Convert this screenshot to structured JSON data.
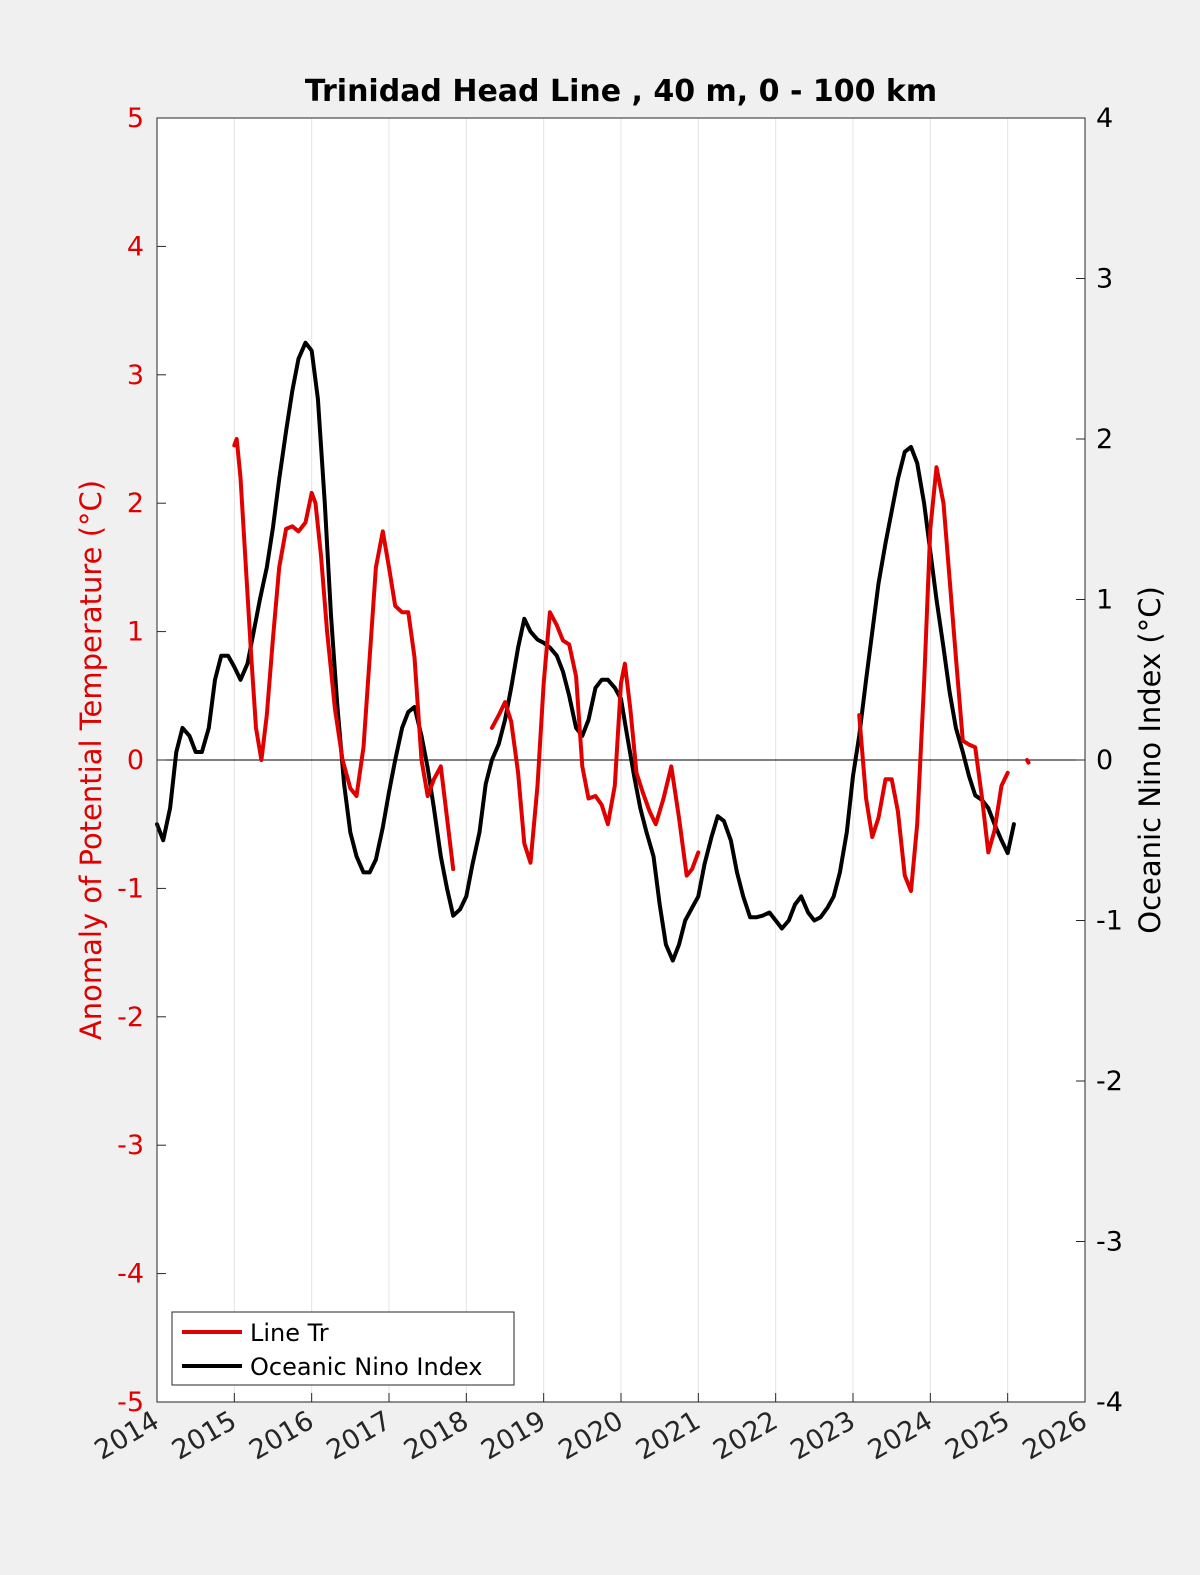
{
  "chart_data": {
    "type": "line",
    "title": "Trinidad Head Line , 40 m, 0 - 100 km",
    "xlabel": "",
    "ylabel_left": "Anomaly of Potential Temperature (°C)",
    "ylabel_right": "Oceanic Nino Index (°C)",
    "xlim": [
      2014,
      2026
    ],
    "ylim_left": [
      -5,
      5
    ],
    "ylim_right": [
      -4,
      4
    ],
    "x_ticks": [
      "2014",
      "2015",
      "2016",
      "2017",
      "2018",
      "2019",
      "2020",
      "2021",
      "2022",
      "2023",
      "2024",
      "2025",
      "2026"
    ],
    "y_left_ticks": [
      "5",
      "4",
      "3",
      "2",
      "1",
      "0",
      "-1",
      "-2",
      "-3",
      "-4",
      "-5"
    ],
    "y_right_ticks": [
      "4",
      "3",
      "2",
      "1",
      "0",
      "-1",
      "-2",
      "-3",
      "-4"
    ],
    "grid": "vertical",
    "legend_position": "bottom-left",
    "colors": {
      "line_tr": "#e00000",
      "oni": "#000000",
      "left_axis": "#e00000",
      "right_axis": "#000000"
    },
    "series": [
      {
        "name": "Line Tr",
        "axis": "left",
        "segments": [
          [
            [
              2015.0,
              2.45
            ],
            [
              2015.03,
              2.5
            ],
            [
              2015.08,
              2.2
            ],
            [
              2015.15,
              1.5
            ],
            [
              2015.22,
              0.8
            ],
            [
              2015.28,
              0.25
            ],
            [
              2015.35,
              0.0
            ],
            [
              2015.42,
              0.35
            ],
            [
              2015.5,
              0.95
            ],
            [
              2015.58,
              1.5
            ],
            [
              2015.67,
              1.8
            ],
            [
              2015.75,
              1.82
            ],
            [
              2015.83,
              1.78
            ],
            [
              2015.92,
              1.85
            ],
            [
              2016.0,
              2.08
            ],
            [
              2016.05,
              2.0
            ],
            [
              2016.12,
              1.6
            ],
            [
              2016.2,
              1.0
            ],
            [
              2016.3,
              0.4
            ],
            [
              2016.4,
              0.0
            ],
            [
              2016.5,
              -0.22
            ],
            [
              2016.58,
              -0.28
            ],
            [
              2016.67,
              0.1
            ],
            [
              2016.75,
              0.8
            ],
            [
              2016.83,
              1.5
            ],
            [
              2016.92,
              1.78
            ],
            [
              2017.0,
              1.5
            ],
            [
              2017.08,
              1.2
            ],
            [
              2017.17,
              1.15
            ],
            [
              2017.25,
              1.15
            ],
            [
              2017.33,
              0.8
            ],
            [
              2017.42,
              0.0
            ],
            [
              2017.5,
              -0.28
            ],
            [
              2017.58,
              -0.15
            ],
            [
              2017.67,
              -0.05
            ],
            [
              2017.75,
              -0.45
            ],
            [
              2017.83,
              -0.85
            ]
          ],
          [
            [
              2018.33,
              0.25
            ],
            [
              2018.42,
              0.35
            ],
            [
              2018.5,
              0.45
            ],
            [
              2018.58,
              0.3
            ],
            [
              2018.67,
              -0.1
            ],
            [
              2018.75,
              -0.65
            ],
            [
              2018.83,
              -0.8
            ],
            [
              2018.92,
              -0.2
            ],
            [
              2019.0,
              0.6
            ],
            [
              2019.08,
              1.15
            ],
            [
              2019.17,
              1.05
            ],
            [
              2019.25,
              0.93
            ],
            [
              2019.33,
              0.9
            ],
            [
              2019.42,
              0.65
            ],
            [
              2019.5,
              -0.05
            ],
            [
              2019.58,
              -0.3
            ],
            [
              2019.67,
              -0.28
            ],
            [
              2019.75,
              -0.35
            ],
            [
              2019.83,
              -0.5
            ],
            [
              2019.92,
              -0.2
            ],
            [
              2020.0,
              0.6
            ],
            [
              2020.05,
              0.75
            ],
            [
              2020.12,
              0.4
            ],
            [
              2020.2,
              -0.1
            ],
            [
              2020.28,
              -0.25
            ],
            [
              2020.37,
              -0.4
            ],
            [
              2020.45,
              -0.5
            ],
            [
              2020.55,
              -0.3
            ],
            [
              2020.65,
              -0.05
            ],
            [
              2020.75,
              -0.45
            ],
            [
              2020.85,
              -0.9
            ],
            [
              2020.92,
              -0.85
            ],
            [
              2021.0,
              -0.72
            ]
          ],
          [
            [
              2023.08,
              0.35
            ],
            [
              2023.17,
              -0.3
            ],
            [
              2023.25,
              -0.6
            ],
            [
              2023.33,
              -0.45
            ],
            [
              2023.42,
              -0.15
            ],
            [
              2023.5,
              -0.15
            ],
            [
              2023.58,
              -0.4
            ],
            [
              2023.67,
              -0.9
            ],
            [
              2023.75,
              -1.02
            ],
            [
              2023.83,
              -0.5
            ],
            [
              2023.92,
              0.6
            ],
            [
              2024.0,
              1.8
            ],
            [
              2024.08,
              2.28
            ],
            [
              2024.17,
              2.0
            ],
            [
              2024.25,
              1.4
            ],
            [
              2024.33,
              0.8
            ],
            [
              2024.42,
              0.15
            ],
            [
              2024.5,
              0.12
            ],
            [
              2024.58,
              0.1
            ],
            [
              2024.67,
              -0.3
            ],
            [
              2024.75,
              -0.72
            ],
            [
              2024.83,
              -0.55
            ],
            [
              2024.92,
              -0.2
            ],
            [
              2025.0,
              -0.1
            ]
          ],
          [
            [
              2025.25,
              0.0
            ],
            [
              2025.27,
              -0.02
            ]
          ]
        ]
      },
      {
        "name": "Oceanic Nino Index",
        "axis": "right",
        "segments": [
          [
            [
              2014.0,
              -0.4
            ],
            [
              2014.08,
              -0.5
            ],
            [
              2014.17,
              -0.3
            ],
            [
              2014.25,
              0.05
            ],
            [
              2014.33,
              0.2
            ],
            [
              2014.42,
              0.15
            ],
            [
              2014.5,
              0.05
            ],
            [
              2014.58,
              0.05
            ],
            [
              2014.67,
              0.2
            ],
            [
              2014.75,
              0.5
            ],
            [
              2014.83,
              0.65
            ],
            [
              2014.92,
              0.65
            ],
            [
              2015.0,
              0.58
            ],
            [
              2015.08,
              0.5
            ],
            [
              2015.17,
              0.6
            ],
            [
              2015.25,
              0.8
            ],
            [
              2015.33,
              1.0
            ],
            [
              2015.42,
              1.2
            ],
            [
              2015.5,
              1.45
            ],
            [
              2015.58,
              1.75
            ],
            [
              2015.67,
              2.05
            ],
            [
              2015.75,
              2.3
            ],
            [
              2015.83,
              2.5
            ],
            [
              2015.92,
              2.6
            ],
            [
              2016.0,
              2.55
            ],
            [
              2016.08,
              2.25
            ],
            [
              2016.17,
              1.6
            ],
            [
              2016.25,
              0.9
            ],
            [
              2016.33,
              0.35
            ],
            [
              2016.42,
              -0.15
            ],
            [
              2016.5,
              -0.45
            ],
            [
              2016.58,
              -0.6
            ],
            [
              2016.67,
              -0.7
            ],
            [
              2016.75,
              -0.7
            ],
            [
              2016.83,
              -0.62
            ],
            [
              2016.92,
              -0.42
            ],
            [
              2017.0,
              -0.2
            ],
            [
              2017.08,
              0.0
            ],
            [
              2017.17,
              0.2
            ],
            [
              2017.25,
              0.3
            ],
            [
              2017.33,
              0.33
            ],
            [
              2017.42,
              0.15
            ],
            [
              2017.5,
              -0.05
            ],
            [
              2017.58,
              -0.3
            ],
            [
              2017.67,
              -0.6
            ],
            [
              2017.75,
              -0.8
            ],
            [
              2017.83,
              -0.97
            ],
            [
              2017.92,
              -0.93
            ],
            [
              2018.0,
              -0.85
            ],
            [
              2018.08,
              -0.65
            ],
            [
              2018.17,
              -0.45
            ],
            [
              2018.25,
              -0.15
            ],
            [
              2018.33,
              0.0
            ],
            [
              2018.42,
              0.1
            ],
            [
              2018.5,
              0.25
            ],
            [
              2018.58,
              0.45
            ],
            [
              2018.67,
              0.7
            ],
            [
              2018.75,
              0.88
            ],
            [
              2018.83,
              0.8
            ],
            [
              2018.92,
              0.75
            ],
            [
              2019.0,
              0.73
            ],
            [
              2019.08,
              0.7
            ],
            [
              2019.17,
              0.65
            ],
            [
              2019.25,
              0.55
            ],
            [
              2019.33,
              0.4
            ],
            [
              2019.42,
              0.2
            ],
            [
              2019.5,
              0.15
            ],
            [
              2019.58,
              0.25
            ],
            [
              2019.67,
              0.45
            ],
            [
              2019.75,
              0.5
            ],
            [
              2019.83,
              0.5
            ],
            [
              2019.92,
              0.45
            ],
            [
              2020.0,
              0.38
            ],
            [
              2020.08,
              0.15
            ],
            [
              2020.17,
              -0.1
            ],
            [
              2020.25,
              -0.3
            ],
            [
              2020.33,
              -0.45
            ],
            [
              2020.42,
              -0.6
            ],
            [
              2020.5,
              -0.9
            ],
            [
              2020.58,
              -1.15
            ],
            [
              2020.67,
              -1.25
            ],
            [
              2020.75,
              -1.15
            ],
            [
              2020.83,
              -1.0
            ],
            [
              2020.92,
              -0.92
            ],
            [
              2021.0,
              -0.85
            ],
            [
              2021.08,
              -0.65
            ],
            [
              2021.17,
              -0.48
            ],
            [
              2021.25,
              -0.35
            ],
            [
              2021.33,
              -0.38
            ],
            [
              2021.42,
              -0.5
            ],
            [
              2021.5,
              -0.7
            ],
            [
              2021.58,
              -0.85
            ],
            [
              2021.67,
              -0.98
            ],
            [
              2021.75,
              -0.98
            ],
            [
              2021.83,
              -0.97
            ],
            [
              2021.92,
              -0.95
            ],
            [
              2022.0,
              -1.0
            ],
            [
              2022.08,
              -1.05
            ],
            [
              2022.17,
              -1.0
            ],
            [
              2022.25,
              -0.9
            ],
            [
              2022.33,
              -0.85
            ],
            [
              2022.42,
              -0.95
            ],
            [
              2022.5,
              -1.0
            ],
            [
              2022.58,
              -0.98
            ],
            [
              2022.67,
              -0.92
            ],
            [
              2022.75,
              -0.85
            ],
            [
              2022.83,
              -0.7
            ],
            [
              2022.92,
              -0.45
            ],
            [
              2023.0,
              -0.1
            ],
            [
              2023.08,
              0.15
            ],
            [
              2023.17,
              0.5
            ],
            [
              2023.25,
              0.8
            ],
            [
              2023.33,
              1.1
            ],
            [
              2023.42,
              1.35
            ],
            [
              2023.5,
              1.55
            ],
            [
              2023.58,
              1.75
            ],
            [
              2023.67,
              1.92
            ],
            [
              2023.75,
              1.95
            ],
            [
              2023.83,
              1.85
            ],
            [
              2023.92,
              1.6
            ],
            [
              2024.0,
              1.3
            ],
            [
              2024.08,
              1.0
            ],
            [
              2024.17,
              0.7
            ],
            [
              2024.25,
              0.42
            ],
            [
              2024.33,
              0.2
            ],
            [
              2024.42,
              0.05
            ],
            [
              2024.5,
              -0.1
            ],
            [
              2024.58,
              -0.22
            ],
            [
              2024.67,
              -0.25
            ],
            [
              2024.75,
              -0.3
            ],
            [
              2024.83,
              -0.4
            ],
            [
              2024.92,
              -0.5
            ],
            [
              2025.0,
              -0.58
            ],
            [
              2025.08,
              -0.4
            ]
          ]
        ]
      }
    ]
  }
}
